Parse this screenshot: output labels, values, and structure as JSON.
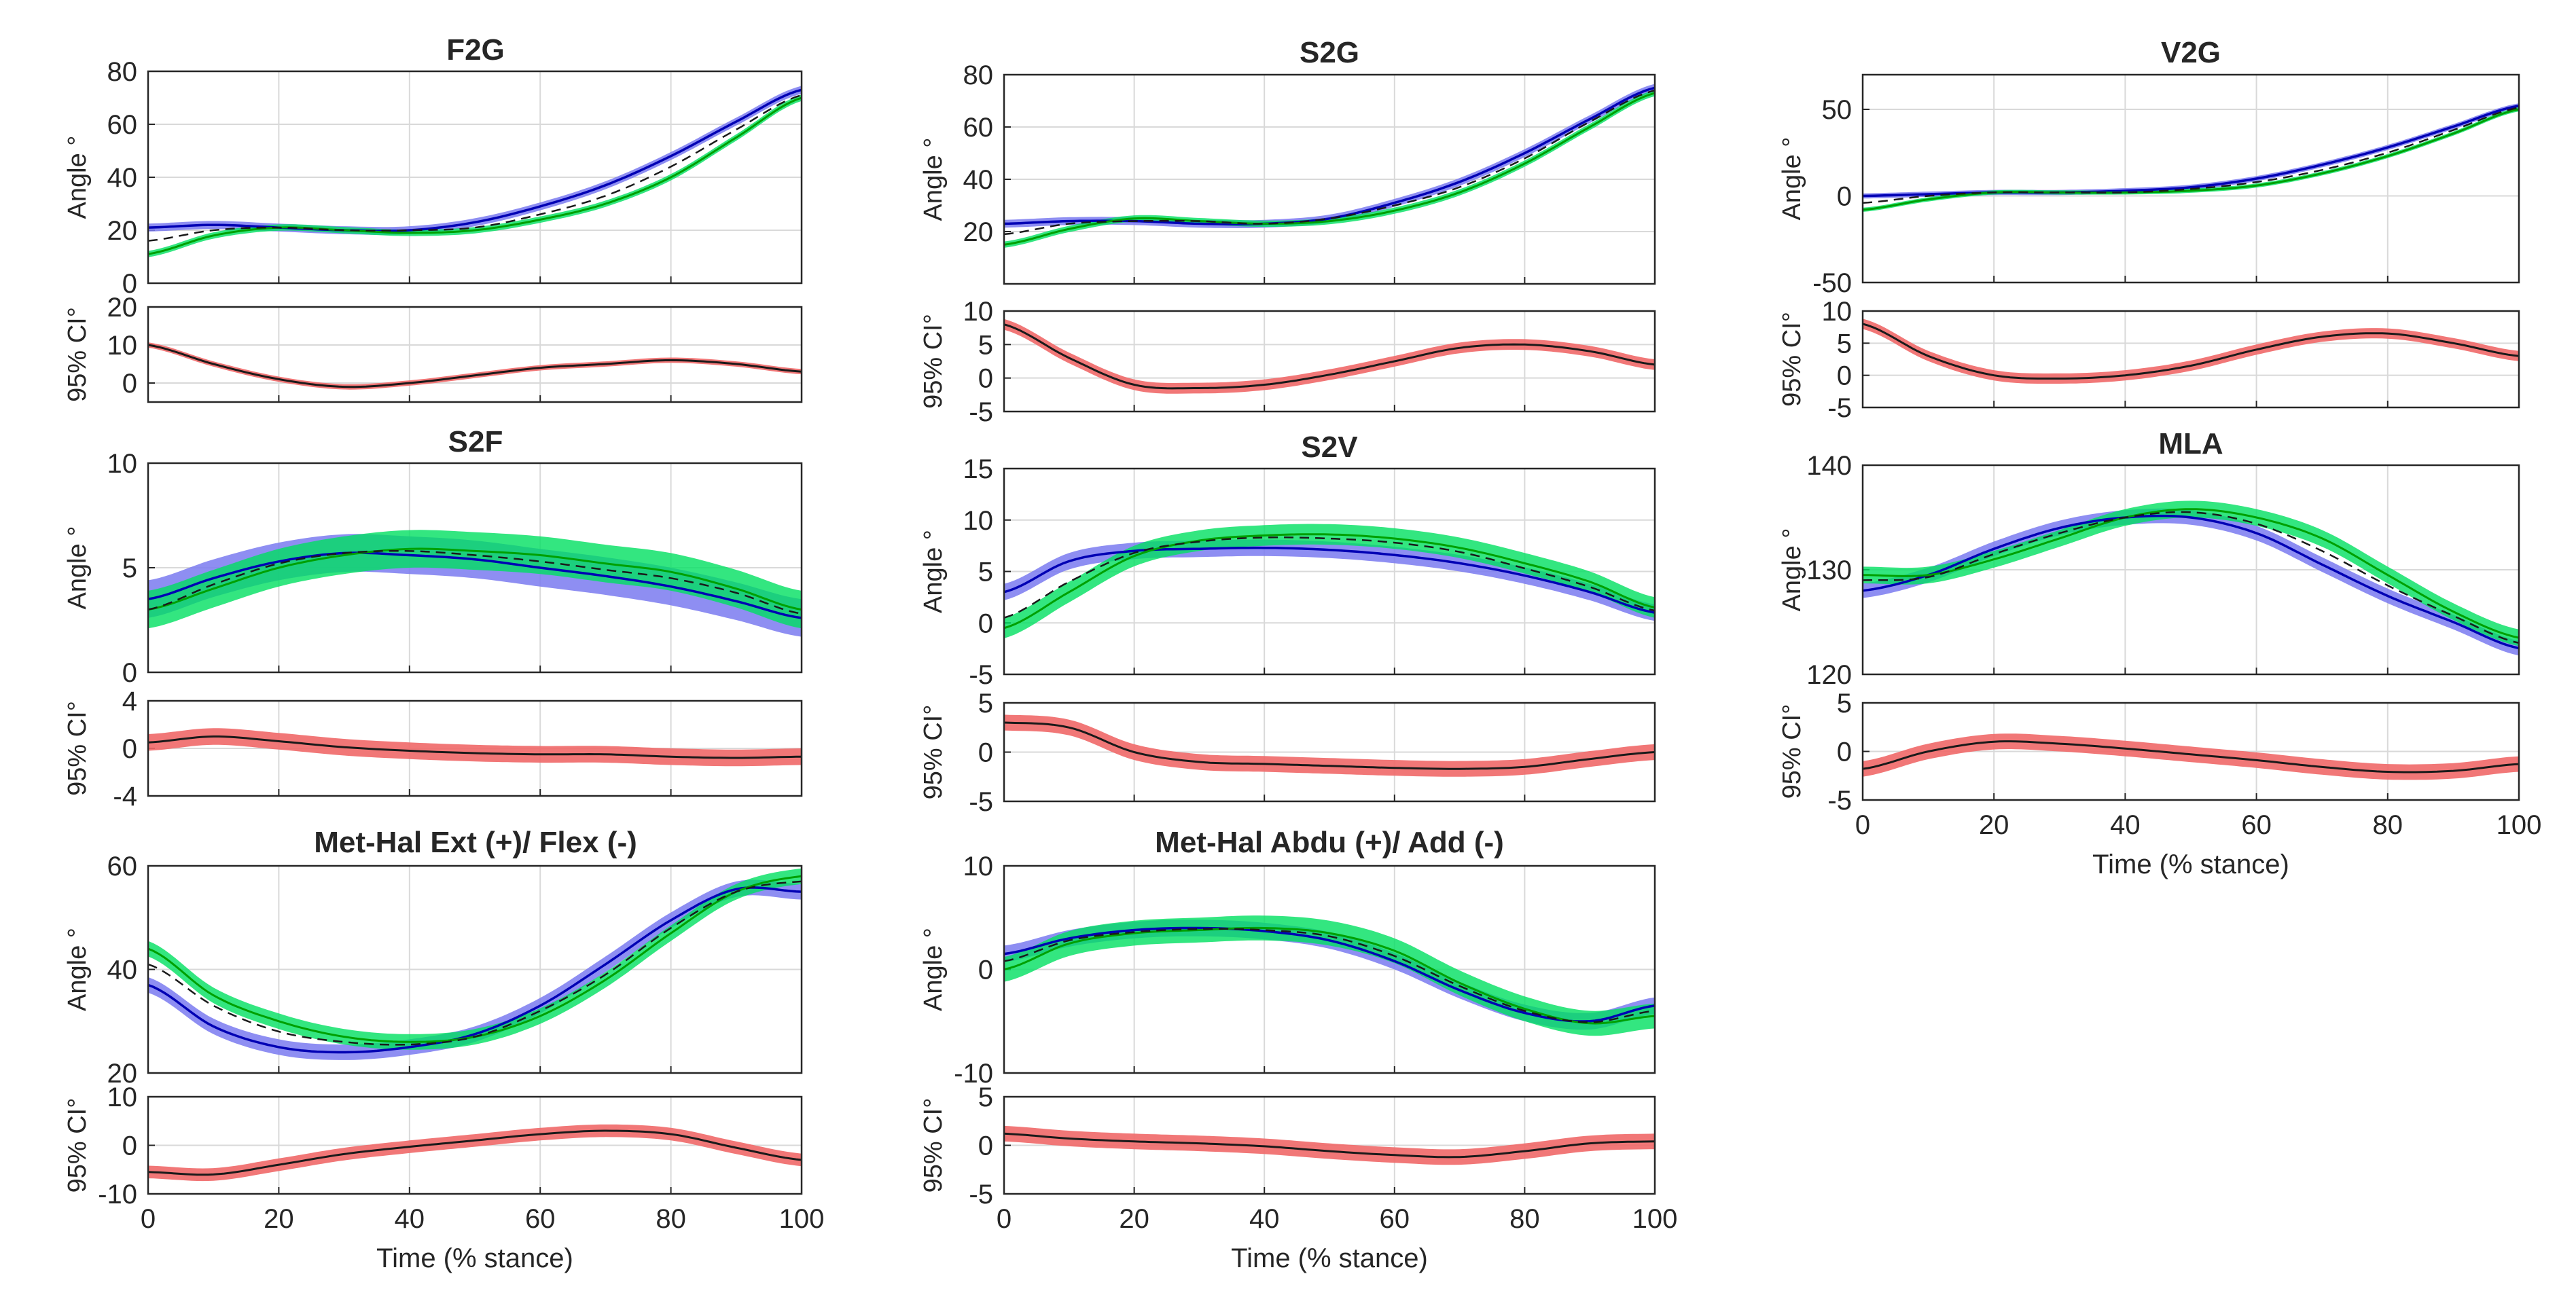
{
  "colors": {
    "series_a_line": "#0000b4",
    "series_a_band": "#7a7af0",
    "series_b_line": "#00a000",
    "series_b_band": "#00e060",
    "mean_dash": "#1a1a1a",
    "ci_line": "#1a1a1a",
    "ci_band": "#f06868",
    "grid": "#d9d9d9",
    "axis": "#262626"
  },
  "chart_data": [
    {
      "type": "line",
      "id": "f2g",
      "title": "F2G",
      "xlabel": "",
      "xlim": [
        0,
        100
      ],
      "xticks": [
        0,
        20,
        40,
        60,
        80,
        100
      ],
      "angle": {
        "ylabel": "Angle °",
        "ylim": [
          0,
          80
        ],
        "yticks": [
          "0",
          "20",
          "40",
          "60",
          "80"
        ],
        "x": [
          0,
          10,
          20,
          30,
          40,
          50,
          60,
          70,
          80,
          90,
          100
        ],
        "series_a": {
          "values": [
            21,
            22,
            21,
            20,
            20,
            23,
            29,
            37,
            48,
            61,
            73
          ],
          "band": 1.5
        },
        "series_b": {
          "values": [
            11,
            18,
            21,
            20,
            19,
            20,
            24,
            30,
            40,
            55,
            70
          ],
          "band": 1.2
        },
        "mean": [
          16,
          20,
          21,
          20,
          20,
          21,
          26,
          33,
          44,
          58,
          71
        ]
      },
      "ci": {
        "ylabel": "95% CI°",
        "ylim": [
          -5,
          20
        ],
        "yticks": [
          "0",
          "10",
          "20"
        ],
        "x": [
          0,
          10,
          20,
          30,
          40,
          50,
          60,
          70,
          80,
          90,
          100
        ],
        "values": [
          10,
          5,
          1,
          -1,
          0,
          2,
          4,
          5,
          6,
          5,
          3
        ],
        "band": 0.7
      }
    },
    {
      "type": "line",
      "id": "s2g",
      "title": "S2G",
      "xlabel": "",
      "xlim": [
        0,
        100
      ],
      "xticks": [
        0,
        20,
        40,
        60,
        80,
        100
      ],
      "angle": {
        "ylabel": "Angle °",
        "ylim": [
          0,
          80
        ],
        "yticks": [
          "20",
          "40",
          "60",
          "80"
        ],
        "x": [
          0,
          10,
          20,
          30,
          40,
          50,
          60,
          70,
          80,
          90,
          100
        ],
        "series_a": {
          "values": [
            23,
            24,
            24,
            23,
            23,
            25,
            31,
            39,
            50,
            63,
            75
          ],
          "band": 1.5
        },
        "series_b": {
          "values": [
            15,
            21,
            25,
            24,
            23,
            24,
            28,
            35,
            46,
            60,
            73
          ],
          "band": 1.2
        },
        "mean": [
          19,
          23,
          24,
          24,
          23,
          25,
          30,
          37,
          48,
          62,
          74
        ]
      },
      "ci": {
        "ylabel": "95% CI°",
        "ylim": [
          -5,
          10
        ],
        "yticks": [
          "-5",
          "0",
          "5",
          "10"
        ],
        "x": [
          0,
          10,
          20,
          30,
          40,
          50,
          60,
          70,
          80,
          90,
          100
        ],
        "values": [
          8,
          3,
          -1,
          -1.5,
          -1,
          0.5,
          2.5,
          4.5,
          5,
          4,
          2
        ],
        "band": 0.8
      }
    },
    {
      "type": "line",
      "id": "v2g",
      "title": "V2G",
      "xlabel": "",
      "xlim": [
        0,
        100
      ],
      "xticks": [
        0,
        20,
        40,
        60,
        80,
        100
      ],
      "angle": {
        "ylabel": "Angle °",
        "ylim": [
          -50,
          70
        ],
        "yticks": [
          "-50",
          "0",
          "50"
        ],
        "x": [
          0,
          10,
          20,
          30,
          40,
          50,
          60,
          70,
          80,
          90,
          100
        ],
        "series_a": {
          "values": [
            0,
            1,
            2,
            2,
            3,
            5,
            10,
            18,
            28,
            40,
            52
          ],
          "band": 1.5
        },
        "series_b": {
          "values": [
            -8,
            -2,
            2,
            2,
            2,
            3,
            6,
            13,
            23,
            36,
            50
          ],
          "band": 1.2
        },
        "mean": [
          -4,
          0,
          2,
          2,
          2,
          4,
          8,
          15,
          25,
          38,
          51
        ]
      },
      "ci": {
        "ylabel": "95% CI°",
        "ylim": [
          -5,
          10
        ],
        "yticks": [
          "-5",
          "0",
          "5",
          "10"
        ],
        "x": [
          0,
          10,
          20,
          30,
          40,
          50,
          60,
          70,
          80,
          90,
          100
        ],
        "values": [
          8,
          3,
          0,
          -0.5,
          0,
          1.5,
          4,
          6,
          6.5,
          5,
          3
        ],
        "band": 0.8
      }
    },
    {
      "type": "line",
      "id": "s2f",
      "title": "S2F",
      "xlabel": "",
      "xlim": [
        0,
        100
      ],
      "xticks": [
        0,
        20,
        40,
        60,
        80,
        100
      ],
      "angle": {
        "ylabel": "Angle °",
        "ylim": [
          0,
          10
        ],
        "yticks": [
          "0",
          "5",
          "10"
        ],
        "x": [
          0,
          10,
          20,
          30,
          40,
          50,
          60,
          70,
          80,
          90,
          100
        ],
        "series_a": {
          "values": [
            3.5,
            4.5,
            5.3,
            5.7,
            5.6,
            5.4,
            5.0,
            4.6,
            4.1,
            3.4,
            2.6
          ],
          "band": 0.9
        },
        "series_b": {
          "values": [
            3.0,
            4.0,
            5.0,
            5.6,
            5.9,
            5.8,
            5.6,
            5.2,
            4.8,
            4.0,
            3.0
          ],
          "band": 0.9
        },
        "mean": [
          3.0,
          4.2,
          5.2,
          5.7,
          5.8,
          5.6,
          5.3,
          4.9,
          4.5,
          3.8,
          2.8
        ]
      },
      "ci": {
        "ylabel": "95% CI°",
        "ylim": [
          -4,
          4
        ],
        "yticks": [
          "-4",
          "0",
          "4"
        ],
        "x": [
          0,
          10,
          20,
          30,
          40,
          50,
          60,
          70,
          80,
          90,
          100
        ],
        "values": [
          0.5,
          1.0,
          0.6,
          0.1,
          -0.2,
          -0.4,
          -0.5,
          -0.5,
          -0.7,
          -0.8,
          -0.7
        ],
        "band": 0.7
      }
    },
    {
      "type": "line",
      "id": "s2v",
      "title": "S2V",
      "xlabel": "",
      "xlim": [
        0,
        100
      ],
      "xticks": [
        0,
        20,
        40,
        60,
        80,
        100
      ],
      "angle": {
        "ylabel": "Angle °",
        "ylim": [
          -5,
          15
        ],
        "yticks": [
          "-5",
          "0",
          "5",
          "10",
          "15"
        ],
        "x": [
          0,
          10,
          20,
          30,
          40,
          50,
          60,
          70,
          80,
          90,
          100
        ],
        "series_a": {
          "values": [
            3,
            6,
            7,
            7.2,
            7.3,
            7.1,
            6.6,
            5.8,
            4.6,
            3.0,
            1.0
          ],
          "band": 0.8
        },
        "series_b": {
          "values": [
            -0.5,
            3,
            6.5,
            8.0,
            8.5,
            8.6,
            8.2,
            7.3,
            5.8,
            4.0,
            1.5
          ],
          "band": 1.0
        },
        "mean": [
          0.5,
          4,
          6.8,
          7.9,
          8.3,
          8.2,
          7.8,
          6.9,
          5.3,
          3.5,
          1.2
        ]
      },
      "ci": {
        "ylabel": "95% CI°",
        "ylim": [
          -5,
          5
        ],
        "yticks": [
          "-5",
          "0",
          "5"
        ],
        "x": [
          0,
          10,
          20,
          30,
          40,
          50,
          60,
          70,
          80,
          90,
          100
        ],
        "values": [
          3,
          2.5,
          0,
          -1,
          -1.2,
          -1.4,
          -1.6,
          -1.7,
          -1.5,
          -0.7,
          0
        ],
        "band": 0.8
      }
    },
    {
      "type": "line",
      "id": "mla",
      "title": "MLA",
      "xlabel": "Time (% stance)",
      "xlim": [
        0,
        100
      ],
      "xticks": [
        0,
        20,
        40,
        60,
        80,
        100
      ],
      "angle": {
        "ylabel": "Angle °",
        "ylim": [
          120,
          140
        ],
        "yticks": [
          "120",
          "130",
          "140"
        ],
        "x": [
          0,
          10,
          20,
          30,
          40,
          50,
          60,
          70,
          80,
          90,
          100
        ],
        "series_a": {
          "values": [
            128,
            129.5,
            132,
            134,
            135,
            135,
            133.5,
            130.5,
            127.5,
            125,
            122.5
          ],
          "band": 0.7
        },
        "series_b": {
          "values": [
            129.5,
            129.5,
            131,
            133,
            135,
            135.8,
            135,
            133,
            129.5,
            126,
            123.5
          ],
          "band": 0.8
        },
        "mean": [
          129,
          129.3,
          131.5,
          133.5,
          135,
          135.5,
          134.4,
          131.8,
          128.5,
          125.6,
          123
        ]
      },
      "ci": {
        "ylabel": "95% CI°",
        "ylim": [
          -5,
          5
        ],
        "yticks": [
          "-5",
          "0",
          "5"
        ],
        "x": [
          0,
          10,
          20,
          30,
          40,
          50,
          60,
          70,
          80,
          90,
          100
        ],
        "values": [
          -1.8,
          0,
          1,
          0.8,
          0.3,
          -0.3,
          -0.9,
          -1.6,
          -2.1,
          -2.0,
          -1.3
        ],
        "band": 0.8
      }
    },
    {
      "type": "line",
      "id": "mhef",
      "title": "Met-Hal Ext (+)/ Flex (-)",
      "xlabel": "Time (% stance)",
      "xlim": [
        0,
        100
      ],
      "xticks": [
        0,
        20,
        40,
        60,
        80,
        100
      ],
      "angle": {
        "ylabel": "Angle °",
        "ylim": [
          20,
          60
        ],
        "yticks": [
          "20",
          "40",
          "60"
        ],
        "x": [
          0,
          10,
          20,
          30,
          40,
          50,
          60,
          70,
          80,
          90,
          100
        ],
        "series_a": {
          "values": [
            37,
            29,
            25,
            24,
            25,
            27.5,
            33,
            41,
            49.5,
            55.5,
            55
          ],
          "band": 1.5
        },
        "series_b": {
          "values": [
            44,
            35,
            30,
            27,
            26,
            27,
            31,
            38,
            47,
            55,
            58
          ],
          "band": 1.5
        },
        "mean": [
          41,
          33,
          28,
          26,
          25.5,
          27,
          32,
          39,
          48,
          55,
          57
        ]
      },
      "ci": {
        "ylabel": "95% CI°",
        "ylim": [
          -10,
          10
        ],
        "yticks": [
          "-10",
          "0",
          "10"
        ],
        "x": [
          0,
          10,
          20,
          30,
          40,
          50,
          60,
          70,
          80,
          90,
          100
        ],
        "values": [
          -5.5,
          -6,
          -4,
          -1.8,
          -0.3,
          1,
          2.3,
          3,
          2.3,
          -0.5,
          -3
        ],
        "band": 1.3
      }
    },
    {
      "type": "line",
      "id": "mhaa",
      "title": "Met-Hal Abdu (+)/ Add (-)",
      "xlabel": "Time (% stance)",
      "xlim": [
        0,
        100
      ],
      "xticks": [
        0,
        20,
        40,
        60,
        80,
        100
      ],
      "angle": {
        "ylabel": "Angle °",
        "ylim": [
          -10,
          10
        ],
        "yticks": [
          "-10",
          "0",
          "10"
        ],
        "x": [
          0,
          10,
          20,
          30,
          40,
          50,
          60,
          70,
          80,
          90,
          100
        ],
        "series_a": {
          "values": [
            1.5,
            3,
            3.8,
            4,
            3.7,
            2.8,
            0.8,
            -2,
            -4.2,
            -5,
            -3.5
          ],
          "band": 0.8
        },
        "series_b": {
          "values": [
            0,
            2.5,
            3.5,
            3.8,
            4,
            3.5,
            1.8,
            -1.3,
            -3.8,
            -5.2,
            -4.5
          ],
          "band": 1.2
        },
        "mean": [
          0.8,
          2.8,
          3.6,
          3.9,
          3.8,
          3.2,
          1.3,
          -1.6,
          -4,
          -5.1,
          -4
        ]
      },
      "ci": {
        "ylabel": "95% CI°",
        "ylim": [
          -5,
          5
        ],
        "yticks": [
          "-5",
          "0",
          "5"
        ],
        "x": [
          0,
          10,
          20,
          30,
          40,
          50,
          60,
          70,
          80,
          90,
          100
        ],
        "values": [
          1.2,
          0.7,
          0.4,
          0.2,
          -0.1,
          -0.6,
          -1.0,
          -1.2,
          -0.6,
          0.2,
          0.4
        ],
        "band": 0.8
      }
    }
  ]
}
